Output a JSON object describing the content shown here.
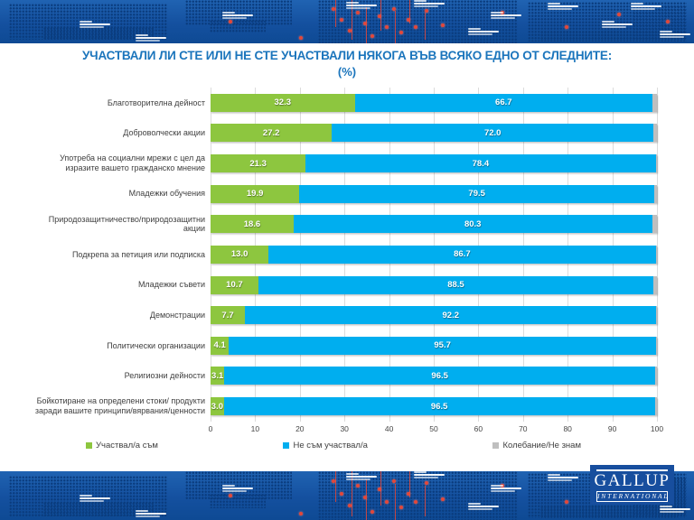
{
  "title": {
    "line1": "УЧАСТВАЛИ ЛИ СТЕ ИЛИ НЕ СТЕ УЧАСТВАЛИ НЯКОГА ВЪВ ВСЯКО ЕДНО ОТ СЛЕДНИТЕ:",
    "line2": "(%)"
  },
  "chart_data": {
    "type": "bar",
    "orientation": "horizontal",
    "stacked": true,
    "grid": "vertical",
    "legend_position": "bottom",
    "xlim": [
      0,
      100
    ],
    "x_ticks": [
      0,
      10,
      20,
      30,
      40,
      50,
      60,
      70,
      80,
      90,
      100
    ],
    "categories": [
      "Благотворителна дейност",
      "Доброволчески акции",
      "Употреба на социални мрежи с цел да изразите вашето гражданско мнение",
      "Младежки обучения",
      "Природозащитничество/природозащитни акции",
      "Подкрепа за петиция или подписка",
      "Младежки съвети",
      "Демонстрации",
      "Политически организации",
      "Религиозни дейности",
      "Бойкотиране на определени стоки/ продукти заради вашите принципи/вярвания/ценности"
    ],
    "series": [
      {
        "name": "Участвал/а съм",
        "color": "#8DC63F",
        "show_labels": true,
        "values": [
          32.3,
          27.2,
          21.3,
          19.9,
          18.6,
          13.0,
          10.7,
          7.7,
          4.1,
          3.1,
          3.0
        ]
      },
      {
        "name": "Не съм участвал/а",
        "color": "#00AEEF",
        "show_labels": true,
        "values": [
          66.7,
          72.0,
          78.4,
          79.5,
          80.3,
          86.7,
          88.5,
          92.2,
          95.7,
          96.5,
          96.5
        ]
      },
      {
        "name": "Колебание/Не знам",
        "color": "#BFBFBF",
        "show_labels": false,
        "values": [
          1.0,
          0.8,
          0.3,
          0.6,
          1.1,
          0.3,
          0.8,
          0.1,
          0.2,
          0.4,
          0.5
        ]
      }
    ]
  },
  "logo": {
    "name": "GALLUP",
    "sub": "INTERNATIONAL"
  },
  "colors": {
    "title": "#1B75BC",
    "band_top": "#2063B2",
    "band_bottom": "#0E4A94",
    "gridline": "#DCDCDC",
    "category_text": "#3F3F3F"
  }
}
